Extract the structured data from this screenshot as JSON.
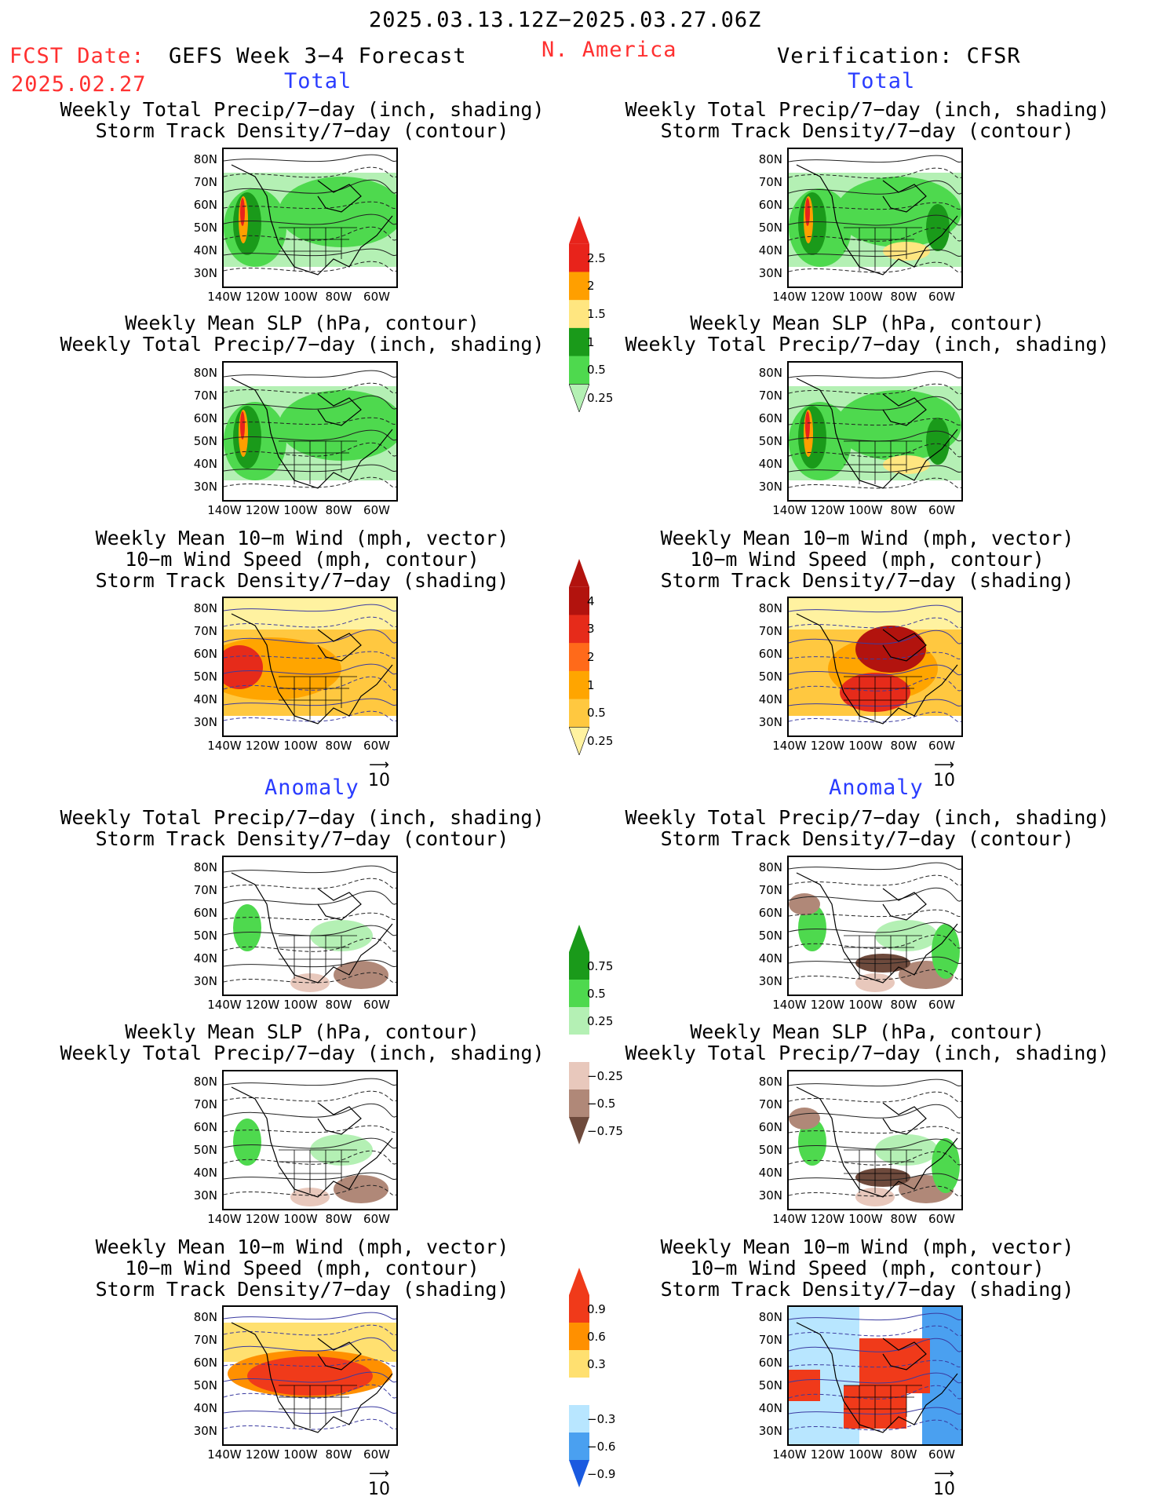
{
  "header": {
    "date_range": "2025.03.13.12Z−2025.03.27.06Z",
    "fcst_label": "FCST Date:",
    "fcst_date": "2025.02.27",
    "product": "GEFS Week 3−4 Forecast",
    "region": "N. America",
    "verification": "Verification: CFSR"
  },
  "sections": {
    "total": "Total",
    "anomaly": "Anomaly"
  },
  "panel_titles": {
    "precip_track": "Weekly Total Precip/7−day (inch, shading)\nStorm Track Density/7−day (contour)",
    "slp_precip": "Weekly Mean SLP (hPa, contour)\nWeekly Total Precip/7−day (inch, shading)",
    "wind": "Weekly Mean 10−m Wind (mph, vector)\n10−m Wind Speed (mph, contour)\nStorm Track Density/7−day (shading)"
  },
  "axes": {
    "lat_ticks": [
      "80N",
      "70N",
      "60N",
      "50N",
      "40N",
      "30N"
    ],
    "lon_ticks": [
      "140W",
      "120W",
      "100W",
      "80W",
      "60W"
    ]
  },
  "vector_ref": "10",
  "colorbars": {
    "precip_total": {
      "labels": [
        "2.5",
        "2",
        "1.5",
        "1",
        "0.5",
        "0.25"
      ],
      "colors": [
        "#e8231b",
        "#ff9f00",
        "#ffe680",
        "#1a9a1a",
        "#4ed94e",
        "#b4f0b4"
      ]
    },
    "track_total": {
      "labels": [
        "4",
        "3",
        "2",
        "1",
        "0.5",
        "0.25"
      ],
      "colors": [
        "#b2130e",
        "#e62b1a",
        "#ff6a1a",
        "#ffa500",
        "#ffc840",
        "#fff2a0"
      ]
    },
    "precip_anom": {
      "labels": [
        "0.75",
        "0.5",
        "0.25",
        "−0.25",
        "−0.5",
        "−0.75"
      ],
      "colors": [
        "#1a9a1a",
        "#4ed94e",
        "#b4f0b4",
        "#ffffff",
        "#e8c8bc",
        "#b08878",
        "#6e4a3c"
      ]
    },
    "track_anom": {
      "labels": [
        "0.9",
        "0.6",
        "0.3",
        "−0.3",
        "−0.6",
        "−0.9"
      ],
      "colors": [
        "#f03a1a",
        "#ff9000",
        "#ffe070",
        "#ffffff",
        "#b8e6ff",
        "#4aa0f0",
        "#1a5ae0"
      ]
    }
  }
}
